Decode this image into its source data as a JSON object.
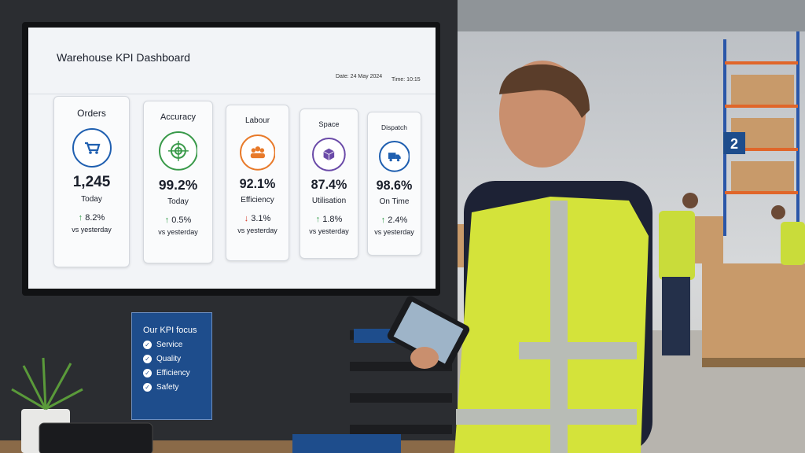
{
  "dashboard": {
    "title": "Warehouse KPI Dashboard",
    "date": "Date: 24 May 2024",
    "time": "Time: 10:15",
    "kpis": [
      {
        "title": "Orders",
        "value": "1,245",
        "label": "Today",
        "change": "↑ 8.2%",
        "compare": "vs yesterday"
      },
      {
        "title": "Accuracy",
        "value": "99.2%",
        "label": "Today",
        "change": "↑ 0.5%",
        "compare": "vs yesterday"
      },
      {
        "title": "Labour",
        "value": "92.1%",
        "label": "Efficiency",
        "change": "↓ 3.1%",
        "compare": "vs yesterday"
      },
      {
        "title": "Space",
        "value": "87.4%",
        "label": "Utilisation",
        "change": "↑ 1.8%",
        "compare": "vs yesterday"
      },
      {
        "title": "Dispatch",
        "value": "98.6%",
        "label": "On Time",
        "change": "↑ 2.4%",
        "compare": "vs yesterday"
      }
    ]
  },
  "poster": {
    "title": "Our KPI focus",
    "items": [
      "Service",
      "Quality",
      "Efficiency",
      "Safety"
    ]
  },
  "aisle_sign": "2"
}
